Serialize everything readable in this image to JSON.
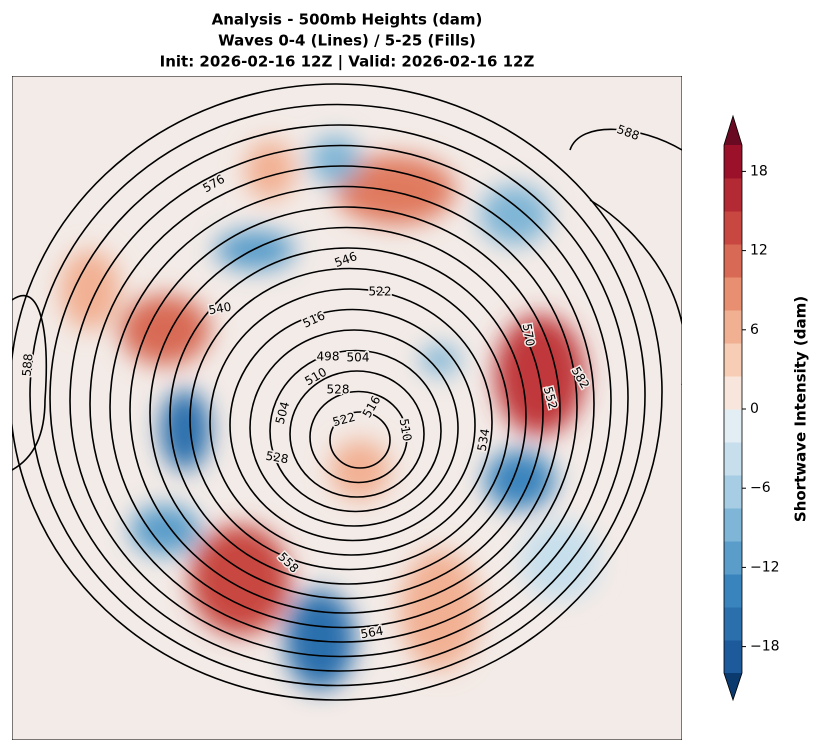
{
  "title": [
    "Analysis - 500mb Heights (dam)",
    "Waves 0-4 (Lines) / 5-25 (Fills)",
    "Init: 2026-02-16 12Z | Valid: 2026-02-16 12Z"
  ],
  "contour_labels": [
    588,
    576,
    546,
    540,
    522,
    516,
    498,
    504,
    510,
    528,
    522,
    504,
    528,
    510,
    516,
    570,
    582,
    552,
    534,
    558,
    564,
    588
  ],
  "colorbar": {
    "label": "Shortwave Intensity (dam)",
    "lim": [
      -20,
      20
    ],
    "ticks": [
      {
        "value": -18,
        "label": "−18"
      },
      {
        "value": -12,
        "label": "−12"
      },
      {
        "value": -6,
        "label": "−6"
      },
      0,
      6,
      12,
      18
    ],
    "colors": [
      "#1c5a9c",
      "#2b6fad",
      "#3a84bd",
      "#5a9dca",
      "#7fb5d6",
      "#a6cde3",
      "#c7dfec",
      "#e3eef4",
      "#f8e6dc",
      "#f7cdb5",
      "#f2b093",
      "#e78f70",
      "#d86a55",
      "#c84741",
      "#b42a34",
      "#9a1129"
    ],
    "extend_colors": [
      "#0b3a6e",
      "#6a0a22"
    ]
  }
}
